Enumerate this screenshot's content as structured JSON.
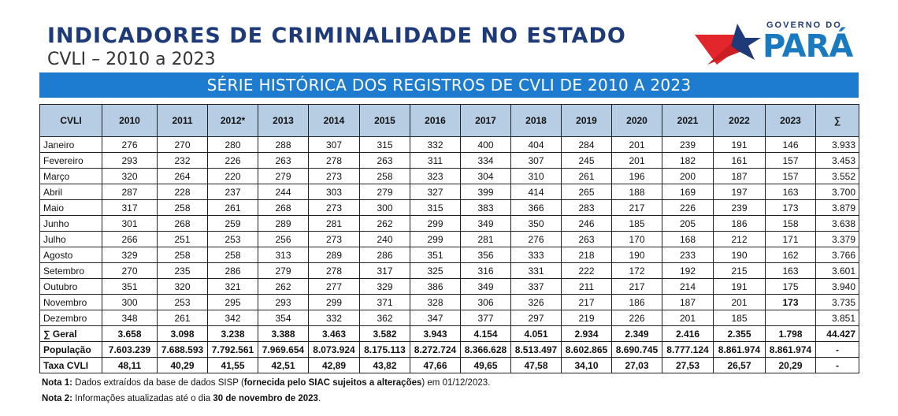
{
  "header": {
    "title": "INDICADORES DE CRIMINALIDADE NO ESTADO",
    "subtitle": "CVLI – 2010 a 2023",
    "logo_top": "GOVERNO DO",
    "logo_main": "PARÁ"
  },
  "banner": "SÉRIE HISTÓRICA DOS REGISTROS DE CVLI DE 2010 A 2023",
  "table": {
    "columns": [
      "CVLI",
      "2010",
      "2011",
      "2012*",
      "2013",
      "2014",
      "2015",
      "2016",
      "2017",
      "2018",
      "2019",
      "2020",
      "2021",
      "2022",
      "2023",
      "∑"
    ],
    "rows": [
      {
        "label": "Janeiro",
        "values": [
          "276",
          "270",
          "280",
          "288",
          "307",
          "315",
          "332",
          "400",
          "404",
          "284",
          "201",
          "239",
          "191",
          "146",
          "3.933"
        ]
      },
      {
        "label": "Fevereiro",
        "values": [
          "293",
          "232",
          "226",
          "263",
          "278",
          "263",
          "311",
          "334",
          "307",
          "245",
          "201",
          "182",
          "161",
          "157",
          "3.453"
        ]
      },
      {
        "label": "Março",
        "values": [
          "320",
          "264",
          "220",
          "279",
          "273",
          "258",
          "323",
          "304",
          "310",
          "261",
          "196",
          "200",
          "187",
          "157",
          "3.552"
        ]
      },
      {
        "label": "Abril",
        "values": [
          "287",
          "228",
          "237",
          "244",
          "303",
          "279",
          "327",
          "399",
          "414",
          "265",
          "188",
          "169",
          "197",
          "163",
          "3.700"
        ]
      },
      {
        "label": "Maio",
        "values": [
          "317",
          "258",
          "261",
          "268",
          "273",
          "300",
          "315",
          "383",
          "366",
          "283",
          "217",
          "226",
          "239",
          "173",
          "3.879"
        ]
      },
      {
        "label": "Junho",
        "values": [
          "301",
          "268",
          "259",
          "289",
          "281",
          "262",
          "299",
          "349",
          "350",
          "246",
          "185",
          "205",
          "186",
          "158",
          "3.638"
        ]
      },
      {
        "label": "Julho",
        "values": [
          "266",
          "251",
          "253",
          "256",
          "273",
          "240",
          "299",
          "281",
          "276",
          "263",
          "170",
          "168",
          "212",
          "171",
          "3.379"
        ]
      },
      {
        "label": "Agosto",
        "values": [
          "329",
          "258",
          "258",
          "313",
          "289",
          "286",
          "351",
          "356",
          "333",
          "218",
          "190",
          "233",
          "190",
          "162",
          "3.766"
        ]
      },
      {
        "label": "Setembro",
        "values": [
          "270",
          "235",
          "286",
          "279",
          "278",
          "317",
          "325",
          "316",
          "331",
          "222",
          "172",
          "192",
          "215",
          "163",
          "3.601"
        ]
      },
      {
        "label": "Outubro",
        "values": [
          "351",
          "320",
          "321",
          "262",
          "277",
          "329",
          "386",
          "349",
          "337",
          "211",
          "217",
          "214",
          "191",
          "175",
          "3.940"
        ]
      },
      {
        "label": "Novembro",
        "values": [
          "300",
          "253",
          "295",
          "293",
          "299",
          "371",
          "328",
          "306",
          "326",
          "217",
          "186",
          "187",
          "201",
          "173",
          "3.735"
        ]
      },
      {
        "label": "Dezembro",
        "values": [
          "348",
          "261",
          "342",
          "354",
          "332",
          "362",
          "347",
          "377",
          "297",
          "219",
          "226",
          "201",
          "185",
          "",
          "3.851"
        ]
      }
    ],
    "totals": [
      {
        "label": "∑ Geral",
        "values": [
          "3.658",
          "3.098",
          "3.238",
          "3.388",
          "3.463",
          "3.582",
          "3.943",
          "4.154",
          "4.051",
          "2.934",
          "2.349",
          "2.416",
          "2.355",
          "1.798",
          "44.427"
        ]
      },
      {
        "label": "População",
        "values": [
          "7.603.239",
          "7.688.593",
          "7.792.561",
          "7.969.654",
          "8.073.924",
          "8.175.113",
          "8.272.724",
          "8.366.628",
          "8.513.497",
          "8.602.865",
          "8.690.745",
          "8.777.124",
          "8.861.974",
          "8.861.974",
          "-"
        ]
      },
      {
        "label": "Taxa CVLI",
        "values": [
          "48,11",
          "40,29",
          "41,55",
          "42,51",
          "42,89",
          "43,82",
          "47,66",
          "49,65",
          "47,58",
          "34,10",
          "27,03",
          "27,53",
          "26,57",
          "20,29",
          "-"
        ]
      }
    ]
  },
  "notes": {
    "nota1_label": "Nota 1:",
    "nota1_text1": " Dados extraídos da base de dados SISP (",
    "nota1_bold": "fornecida pelo SIAC sujeitos a alterações",
    "nota1_text2": ") em 01/12/2023.",
    "nota2_label": "Nota 2:",
    "nota2_text1": " Informações atualizadas até o dia ",
    "nota2_bold": "30 de novembro de 2023",
    "nota2_text2": "."
  },
  "colors": {
    "title": "#1e3a78",
    "banner": "#1d7bd0",
    "header_row": "#b6cde4",
    "logo_red": "#e3262c",
    "logo_blue": "#1a7ac0"
  }
}
